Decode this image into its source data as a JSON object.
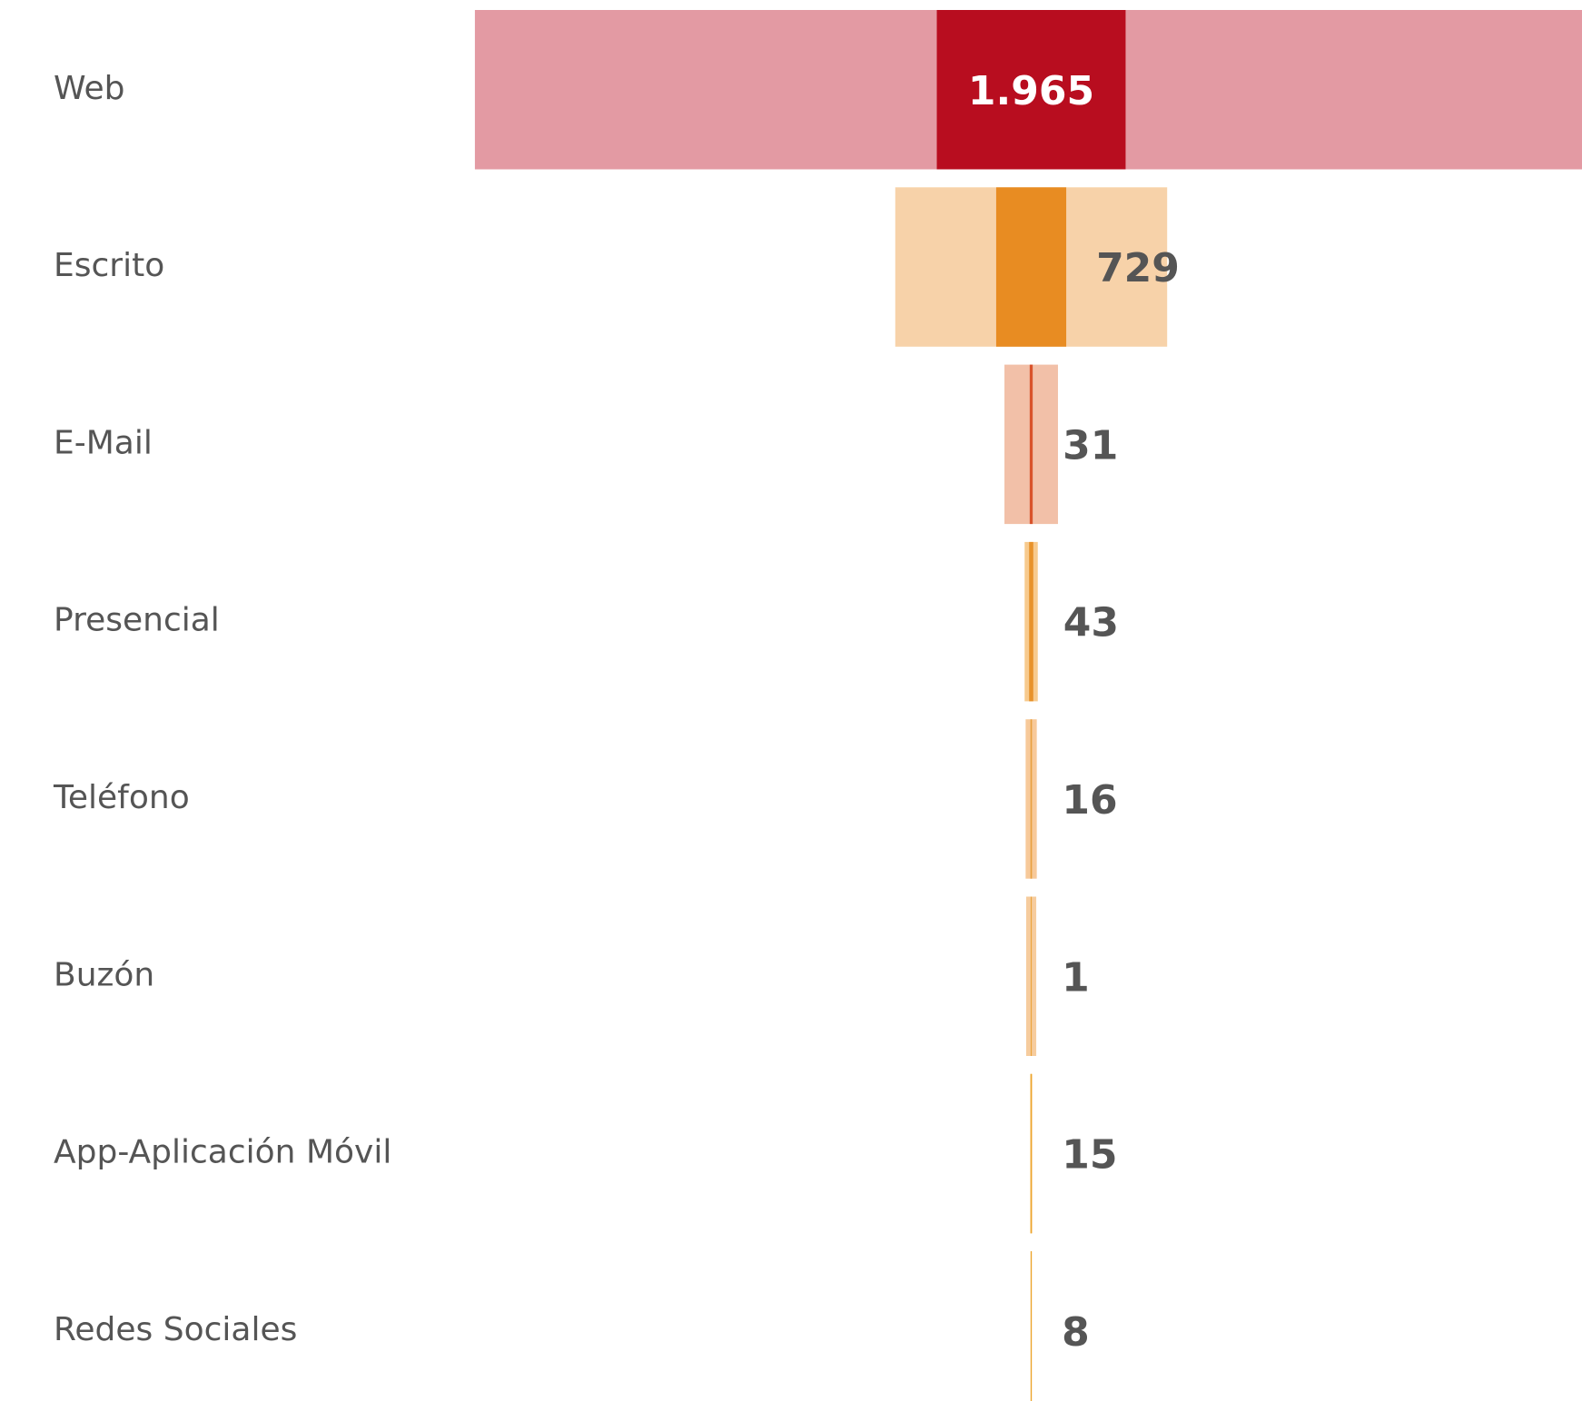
{
  "chart_data": {
    "type": "funnel",
    "categories": [
      "Web",
      "Escrito",
      "E-Mail",
      "Presencial",
      "Teléfono",
      "Buzón",
      "App-Aplicación Móvil",
      "Redes Sociales"
    ],
    "series": [
      {
        "colors": [
          "#e39aa3",
          "#f7d2a9",
          "#f2c0a8",
          "#f7ca8e",
          "#f7c99a",
          "#f6cc9e",
          "#eca42a",
          "#eca42a"
        ],
        "values": [
          11580,
          2830,
          557,
          137,
          116,
          105,
          15,
          8
        ]
      },
      {
        "colors": [
          "#b80d1f",
          "#e88c22",
          "#d9532b",
          "#e8922a",
          "#e8a040",
          "#eca43d",
          "#eca42a",
          "#eca42a"
        ],
        "values": [
          1965,
          729,
          31,
          43,
          16,
          1,
          15,
          8
        ],
        "value_labels": [
          "1.965",
          "729",
          "31",
          "43",
          "16",
          "1",
          "15",
          "8"
        ]
      }
    ]
  }
}
